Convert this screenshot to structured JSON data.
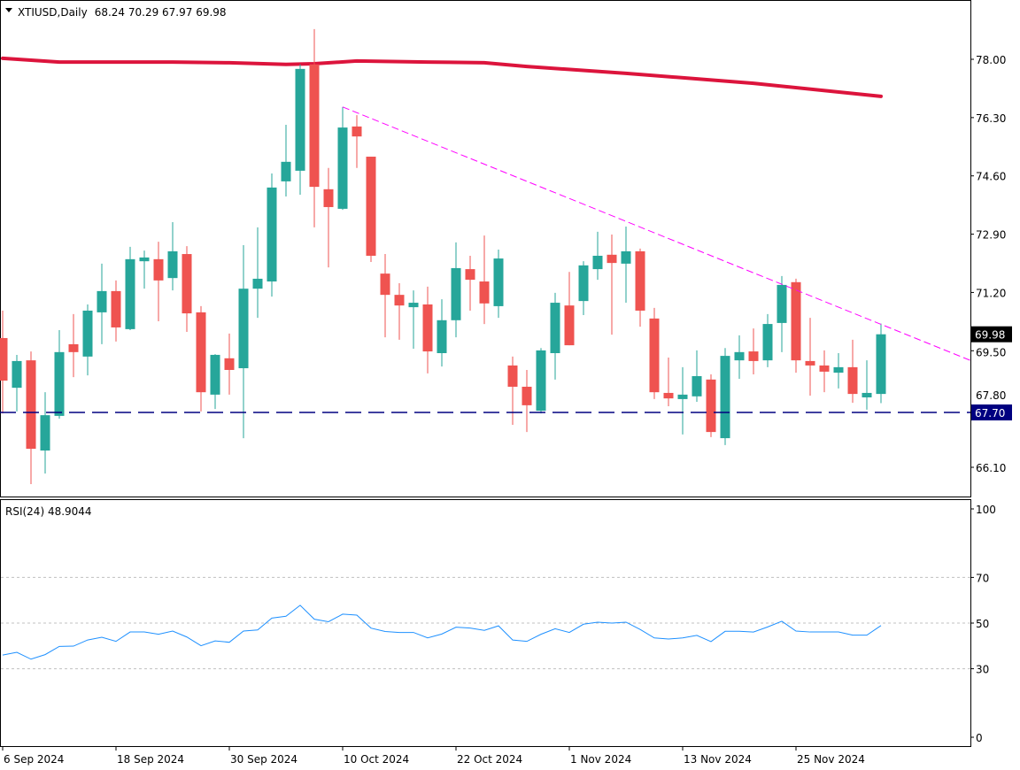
{
  "header": {
    "symbol": "XTIUSD,Daily",
    "ohlc": "68.24 70.29 67.97 69.98"
  },
  "rsi_header": "RSI(24) 48.9044",
  "colors": {
    "bull": "#26a69a",
    "bear": "#ef5350",
    "ma": "#dc143c",
    "trend": "#ff00ff",
    "hline": "#000080",
    "rsi": "#1e90ff",
    "grid": "#c0c0c0",
    "last_bg": "#000000",
    "hline_bg": "#000080"
  },
  "chart_data": [
    {
      "type": "candlestick",
      "title": "XTIUSD,Daily",
      "ylim": [
        65.4,
        79.75
      ],
      "y_ticks": [
        "78.00",
        "76.30",
        "74.60",
        "72.90",
        "71.20",
        "69.50",
        "67.80",
        "66.10"
      ],
      "x_labels": [
        {
          "index": 0,
          "label": "6 Sep 2024"
        },
        {
          "index": 8,
          "label": "18 Sep 2024"
        },
        {
          "index": 16,
          "label": "30 Sep 2024"
        },
        {
          "index": 24,
          "label": "10 Oct 2024"
        },
        {
          "index": 32,
          "label": "22 Oct 2024"
        },
        {
          "index": 40,
          "label": "1 Nov 2024"
        },
        {
          "index": 48,
          "label": "13 Nov 2024"
        },
        {
          "index": 56,
          "label": "25 Nov 2024"
        }
      ],
      "ohlc": [
        [
          69.87,
          70.67,
          67.67,
          68.63
        ],
        [
          68.42,
          69.38,
          67.73,
          69.2
        ],
        [
          69.22,
          69.48,
          65.61,
          66.64
        ],
        [
          66.59,
          68.29,
          65.92,
          67.62
        ],
        [
          67.6,
          70.1,
          67.52,
          69.46
        ],
        [
          69.69,
          70.57,
          68.73,
          69.46
        ],
        [
          69.33,
          70.85,
          68.78,
          70.67
        ],
        [
          70.62,
          72.04,
          69.69,
          71.24
        ],
        [
          71.24,
          71.55,
          69.77,
          70.18
        ],
        [
          70.13,
          72.53,
          70.1,
          72.17
        ],
        [
          72.11,
          72.42,
          71.31,
          72.22
        ],
        [
          72.17,
          72.68,
          70.36,
          71.55
        ],
        [
          71.62,
          73.25,
          71.26,
          72.4
        ],
        [
          72.32,
          72.55,
          70.05,
          70.59
        ],
        [
          70.62,
          70.8,
          67.73,
          68.29
        ],
        [
          68.22,
          69.4,
          67.8,
          69.38
        ],
        [
          69.28,
          70.0,
          68.22,
          68.94
        ],
        [
          68.99,
          72.58,
          66.95,
          71.31
        ],
        [
          71.31,
          73.1,
          70.46,
          71.6
        ],
        [
          71.52,
          74.67,
          71.08,
          74.26
        ],
        [
          74.44,
          76.09,
          74.0,
          75.01
        ],
        [
          74.75,
          77.85,
          74.05,
          77.72
        ],
        [
          77.85,
          78.88,
          73.1,
          74.28
        ],
        [
          74.21,
          74.83,
          71.93,
          73.69
        ],
        [
          73.64,
          76.61,
          73.61,
          76.01
        ],
        [
          76.04,
          76.37,
          74.83,
          75.75
        ],
        [
          75.16,
          75.16,
          72.09,
          72.27
        ],
        [
          71.75,
          72.32,
          69.89,
          71.13
        ],
        [
          71.13,
          71.47,
          69.82,
          70.82
        ],
        [
          70.77,
          71.26,
          69.56,
          70.9
        ],
        [
          70.85,
          71.37,
          68.84,
          69.48
        ],
        [
          69.43,
          71.0,
          69.04,
          70.39
        ],
        [
          70.39,
          72.66,
          69.89,
          71.91
        ],
        [
          71.88,
          72.27,
          70.67,
          71.57
        ],
        [
          71.52,
          72.86,
          70.28,
          70.88
        ],
        [
          70.8,
          72.45,
          70.46,
          72.19
        ],
        [
          69.07,
          69.33,
          67.34,
          68.45
        ],
        [
          68.45,
          68.94,
          67.13,
          67.91
        ],
        [
          67.75,
          69.58,
          67.67,
          69.51
        ],
        [
          69.43,
          71.19,
          68.66,
          70.9
        ],
        [
          70.82,
          71.8,
          69.66,
          69.66
        ],
        [
          70.95,
          72.11,
          70.54,
          71.99
        ],
        [
          71.88,
          72.97,
          71.57,
          72.27
        ],
        [
          72.3,
          72.89,
          69.97,
          72.06
        ],
        [
          72.04,
          73.12,
          70.9,
          72.4
        ],
        [
          72.4,
          72.48,
          70.2,
          70.67
        ],
        [
          70.44,
          70.75,
          68.09,
          68.29
        ],
        [
          68.27,
          69.3,
          67.88,
          68.11
        ],
        [
          68.09,
          69.02,
          67.06,
          68.22
        ],
        [
          68.17,
          69.51,
          68.01,
          68.76
        ],
        [
          68.66,
          68.81,
          66.98,
          67.13
        ],
        [
          66.95,
          69.58,
          66.75,
          69.35
        ],
        [
          69.22,
          69.95,
          68.68,
          69.46
        ],
        [
          69.48,
          70.15,
          68.81,
          69.2
        ],
        [
          69.22,
          70.57,
          69.02,
          70.28
        ],
        [
          70.31,
          71.68,
          69.46,
          71.42
        ],
        [
          71.5,
          71.6,
          68.86,
          69.22
        ],
        [
          69.2,
          70.46,
          68.19,
          69.07
        ],
        [
          69.07,
          69.51,
          68.29,
          68.89
        ],
        [
          68.86,
          69.43,
          68.4,
          69.02
        ],
        [
          69.02,
          69.82,
          67.98,
          68.24
        ],
        [
          68.14,
          69.22,
          67.78,
          68.27
        ],
        [
          68.24,
          70.29,
          67.97,
          69.98
        ]
      ],
      "moving_average": [
        [
          0,
          78.03
        ],
        [
          4,
          77.92
        ],
        [
          12,
          77.92
        ],
        [
          16,
          77.9
        ],
        [
          20,
          77.85
        ],
        [
          22,
          77.87
        ],
        [
          25,
          77.95
        ],
        [
          30,
          77.92
        ],
        [
          34,
          77.9
        ],
        [
          37,
          77.79
        ],
        [
          44,
          77.59
        ],
        [
          53,
          77.3
        ],
        [
          62,
          76.92
        ]
      ],
      "trendline": [
        [
          24,
          76.61
        ],
        [
          68.3,
          69.22
        ]
      ],
      "horizontal_line": {
        "value": 67.7,
        "label": "67.70"
      },
      "last_price": {
        "value": 69.98,
        "label": "69.98"
      }
    },
    {
      "type": "line",
      "title": "RSI(24)",
      "ylim": [
        0,
        100
      ],
      "y_ticks": [
        "100",
        "70",
        "50",
        "30",
        "0"
      ],
      "levels": [
        70,
        50,
        30
      ],
      "values": [
        36.0,
        37.2,
        34.2,
        36.2,
        39.8,
        39.9,
        42.6,
        43.8,
        42.0,
        46.1,
        46.1,
        45.1,
        46.5,
        43.9,
        40.1,
        42.2,
        41.6,
        46.5,
        47.0,
        52.2,
        53.0,
        57.8,
        51.7,
        50.6,
        53.9,
        53.5,
        47.8,
        46.3,
        45.9,
        45.9,
        43.5,
        45.2,
        48.2,
        47.8,
        46.8,
        48.8,
        42.6,
        42.0,
        45.1,
        47.5,
        45.9,
        49.5,
        50.4,
        50.0,
        50.4,
        47.2,
        43.5,
        43.0,
        43.5,
        44.6,
        41.9,
        46.4,
        46.4,
        46.1,
        48.3,
        50.8,
        46.5,
        46.1,
        46.1,
        46.1,
        44.7,
        44.7,
        48.9
      ]
    }
  ]
}
